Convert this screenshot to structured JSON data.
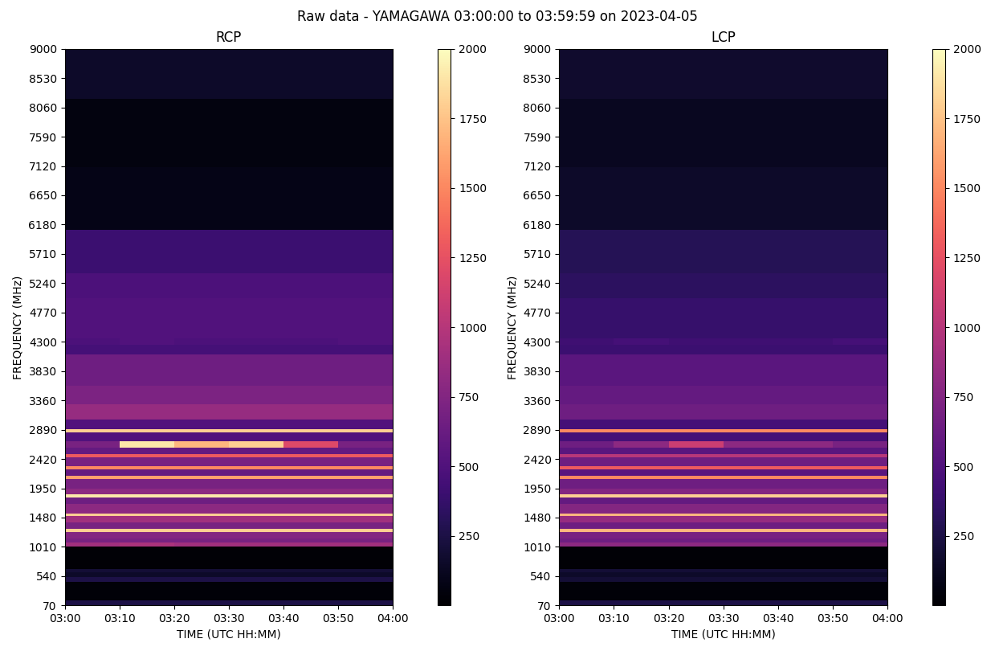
{
  "title": "Raw data - YAMAGAWA 03:00:00 to 03:59:59 on 2023-04-05",
  "chart_data": [
    {
      "type": "heatmap",
      "title": "RCP",
      "x_label": "TIME (UTC HH:MM)",
      "y_label": "FREQUENCY (MHz)",
      "color": "magma",
      "xlim": [
        0,
        60
      ],
      "xticks": [
        {
          "value": 0,
          "label": "03:00"
        },
        {
          "value": 10,
          "label": "03:10"
        },
        {
          "value": 20,
          "label": "03:20"
        },
        {
          "value": 30,
          "label": "03:30"
        },
        {
          "value": 40,
          "label": "03:40"
        },
        {
          "value": 50,
          "label": "03:50"
        },
        {
          "value": 60,
          "label": "04:00"
        }
      ],
      "ylim": [
        70,
        9000
      ],
      "yticks": [
        70,
        540,
        1010,
        1480,
        1950,
        2420,
        2890,
        3360,
        3830,
        4300,
        4770,
        5240,
        5710,
        6180,
        6650,
        7120,
        7590,
        8060,
        8530,
        9000
      ],
      "x_edges": [
        0,
        10,
        20,
        30,
        40,
        50,
        60
      ],
      "y_edges": [
        70,
        150,
        450,
        520,
        600,
        650,
        1010,
        1080,
        1150,
        1250,
        1300,
        1400,
        1500,
        1550,
        1700,
        1800,
        1850,
        1950,
        2100,
        2150,
        2250,
        2300,
        2450,
        2500,
        2600,
        2700,
        2850,
        2900,
        3050,
        3300,
        3600,
        4100,
        4250,
        4350,
        5000,
        5400,
        6100,
        7100,
        8200,
        9000
      ],
      "cells": [
        [
          250,
          250,
          250,
          250,
          250,
          250
        ],
        [
          30,
          30,
          30,
          30,
          30,
          30
        ],
        [
          250,
          250,
          250,
          250,
          250,
          250
        ],
        [
          150,
          150,
          150,
          150,
          150,
          150
        ],
        [
          200,
          200,
          200,
          200,
          200,
          200
        ],
        [
          20,
          20,
          20,
          20,
          20,
          20
        ],
        [
          900,
          950,
          900,
          900,
          900,
          900
        ],
        [
          700,
          700,
          700,
          700,
          700,
          700
        ],
        [
          750,
          750,
          750,
          750,
          750,
          750
        ],
        [
          1800,
          1800,
          1800,
          1800,
          1800,
          1800
        ],
        [
          700,
          700,
          700,
          700,
          700,
          700
        ],
        [
          900,
          900,
          900,
          900,
          900,
          900
        ],
        [
          1800,
          1800,
          1800,
          1800,
          1800,
          1800
        ],
        [
          800,
          800,
          800,
          800,
          800,
          800
        ],
        [
          650,
          650,
          650,
          650,
          650,
          650
        ],
        [
          1900,
          1900,
          1900,
          1900,
          1900,
          1900
        ],
        [
          800,
          800,
          800,
          800,
          800,
          800
        ],
        [
          700,
          700,
          700,
          700,
          700,
          700
        ],
        [
          1600,
          1600,
          1600,
          1600,
          1600,
          1600
        ],
        [
          600,
          600,
          600,
          600,
          600,
          600
        ],
        [
          1500,
          1500,
          1500,
          1500,
          1500,
          1500
        ],
        [
          700,
          700,
          700,
          700,
          700,
          700
        ],
        [
          1300,
          1300,
          1300,
          1300,
          1300,
          1300
        ],
        [
          600,
          600,
          600,
          600,
          600,
          600
        ],
        [
          700,
          1900,
          1700,
          1800,
          1200,
          700
        ],
        [
          500,
          500,
          500,
          500,
          500,
          500
        ],
        [
          1800,
          1800,
          1800,
          1800,
          1800,
          1800
        ],
        [
          500,
          500,
          500,
          500,
          500,
          500
        ],
        [
          850,
          850,
          850,
          850,
          850,
          850
        ],
        [
          720,
          720,
          720,
          720,
          720,
          720
        ],
        [
          650,
          650,
          650,
          650,
          650,
          650
        ],
        [
          450,
          450,
          450,
          450,
          450,
          450
        ],
        [
          480,
          500,
          480,
          480,
          480,
          500
        ],
        [
          500,
          500,
          500,
          500,
          500,
          500
        ],
        [
          480,
          480,
          480,
          480,
          480,
          480
        ],
        [
          400,
          400,
          400,
          400,
          400,
          400
        ],
        [
          80,
          80,
          80,
          80,
          80,
          80
        ],
        [
          60,
          60,
          60,
          60,
          60,
          60
        ],
        [
          150,
          150,
          150,
          150,
          150,
          150
        ]
      ],
      "colorbar": {
        "range": [
          0,
          2000
        ],
        "ticks": [
          250,
          500,
          750,
          1000,
          1250,
          1500,
          1750,
          2000
        ]
      }
    },
    {
      "type": "heatmap",
      "title": "LCP",
      "x_label": "TIME (UTC HH:MM)",
      "y_label": "FREQUENCY (MHz)",
      "color": "magma",
      "xlim": [
        0,
        60
      ],
      "xticks": [
        {
          "value": 0,
          "label": "03:00"
        },
        {
          "value": 10,
          "label": "03:10"
        },
        {
          "value": 20,
          "label": "03:20"
        },
        {
          "value": 30,
          "label": "03:30"
        },
        {
          "value": 40,
          "label": "03:40"
        },
        {
          "value": 50,
          "label": "03:50"
        },
        {
          "value": 60,
          "label": "04:00"
        }
      ],
      "ylim": [
        70,
        9000
      ],
      "yticks": [
        70,
        540,
        1010,
        1480,
        1950,
        2420,
        2890,
        3360,
        3830,
        4300,
        4770,
        5240,
        5710,
        6180,
        6650,
        7120,
        7590,
        8060,
        8530,
        9000
      ],
      "x_edges": [
        0,
        10,
        20,
        30,
        40,
        50,
        60
      ],
      "y_edges": [
        70,
        150,
        450,
        520,
        600,
        650,
        1010,
        1080,
        1150,
        1250,
        1300,
        1400,
        1500,
        1550,
        1700,
        1800,
        1850,
        1950,
        2100,
        2150,
        2250,
        2300,
        2450,
        2500,
        2600,
        2700,
        2850,
        2900,
        3050,
        3300,
        3600,
        4100,
        4250,
        4350,
        5000,
        5400,
        6100,
        7100,
        8200,
        9000
      ],
      "cells": [
        [
          250,
          250,
          250,
          250,
          250,
          250
        ],
        [
          30,
          30,
          30,
          30,
          30,
          30
        ],
        [
          200,
          200,
          200,
          200,
          200,
          200
        ],
        [
          150,
          150,
          150,
          150,
          150,
          150
        ],
        [
          200,
          200,
          200,
          200,
          200,
          200
        ],
        [
          20,
          20,
          20,
          20,
          20,
          20
        ],
        [
          800,
          800,
          800,
          800,
          800,
          800
        ],
        [
          650,
          650,
          650,
          650,
          650,
          650
        ],
        [
          700,
          700,
          700,
          700,
          700,
          700
        ],
        [
          1700,
          1700,
          1700,
          1700,
          1700,
          1700
        ],
        [
          650,
          650,
          650,
          650,
          650,
          650
        ],
        [
          850,
          850,
          850,
          850,
          850,
          850
        ],
        [
          1700,
          1700,
          1700,
          1700,
          1700,
          1700
        ],
        [
          750,
          750,
          750,
          750,
          750,
          750
        ],
        [
          600,
          600,
          600,
          600,
          600,
          600
        ],
        [
          1800,
          1800,
          1800,
          1800,
          1800,
          1800
        ],
        [
          750,
          750,
          750,
          750,
          750,
          750
        ],
        [
          650,
          650,
          650,
          650,
          650,
          650
        ],
        [
          1500,
          1500,
          1500,
          1500,
          1500,
          1500
        ],
        [
          550,
          550,
          550,
          550,
          550,
          550
        ],
        [
          1300,
          1300,
          1300,
          1300,
          1300,
          1300
        ],
        [
          650,
          650,
          650,
          650,
          650,
          650
        ],
        [
          1000,
          1000,
          1000,
          1000,
          1000,
          1000
        ],
        [
          550,
          550,
          550,
          550,
          550,
          550
        ],
        [
          650,
          800,
          1100,
          800,
          800,
          700
        ],
        [
          450,
          450,
          450,
          450,
          450,
          450
        ],
        [
          1500,
          1500,
          1500,
          1500,
          1500,
          1500
        ],
        [
          450,
          450,
          450,
          450,
          450,
          450
        ],
        [
          650,
          650,
          650,
          650,
          650,
          650
        ],
        [
          600,
          600,
          600,
          600,
          600,
          600
        ],
        [
          550,
          550,
          550,
          550,
          550,
          550
        ],
        [
          400,
          400,
          400,
          400,
          400,
          400
        ],
        [
          420,
          450,
          420,
          420,
          420,
          450
        ],
        [
          380,
          380,
          380,
          380,
          380,
          380
        ],
        [
          330,
          330,
          330,
          330,
          330,
          330
        ],
        [
          300,
          300,
          300,
          300,
          300,
          300
        ],
        [
          150,
          150,
          150,
          150,
          150,
          150
        ],
        [
          120,
          120,
          120,
          120,
          120,
          120
        ],
        [
          170,
          170,
          170,
          170,
          170,
          170
        ]
      ],
      "colorbar": {
        "range": [
          0,
          2000
        ],
        "ticks": [
          250,
          500,
          750,
          1000,
          1250,
          1500,
          1750,
          2000
        ]
      }
    }
  ]
}
